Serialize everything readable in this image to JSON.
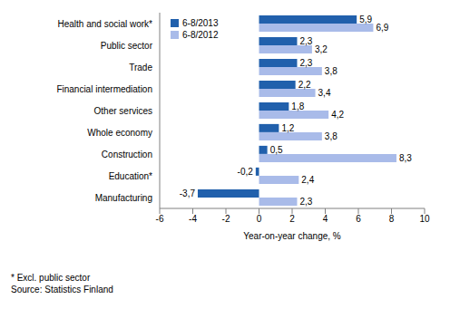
{
  "chart_data": {
    "type": "bar",
    "orientation": "horizontal",
    "x_label": "Year-on-year change, %",
    "categories": [
      "Health and social work*",
      "Public sector",
      "Trade",
      "Financial intermediation",
      "Other services",
      "Whole economy",
      "Construction",
      "Education*",
      "Manufacturing"
    ],
    "series": [
      {
        "name": "6-8/2013",
        "color": "#2160ac",
        "values": [
          5.9,
          2.3,
          2.3,
          2.2,
          1.8,
          1.2,
          0.5,
          -0.2,
          -3.7
        ],
        "value_labels": [
          "5,9",
          "2,3",
          "2,3",
          "2,2",
          "1,8",
          "1,2",
          "0,5",
          "-0,2",
          "-3,7"
        ]
      },
      {
        "name": "6-8/2012",
        "color": "#a9bbe9",
        "values": [
          6.9,
          3.2,
          3.8,
          3.4,
          4.2,
          3.8,
          8.3,
          2.4,
          2.3
        ],
        "value_labels": [
          "6,9",
          "3,2",
          "3,8",
          "3,4",
          "4,2",
          "3,8",
          "8,3",
          "2,4",
          "2,3"
        ]
      }
    ],
    "xlim": [
      -6,
      10
    ],
    "xticks": [
      -6,
      -4,
      -2,
      0,
      2,
      4,
      6,
      8,
      10
    ],
    "grid": false,
    "data_labels": true,
    "legend": "upper left",
    "annotations": [
      "* Excl. public sector",
      "Source: Statistics Finland"
    ]
  }
}
